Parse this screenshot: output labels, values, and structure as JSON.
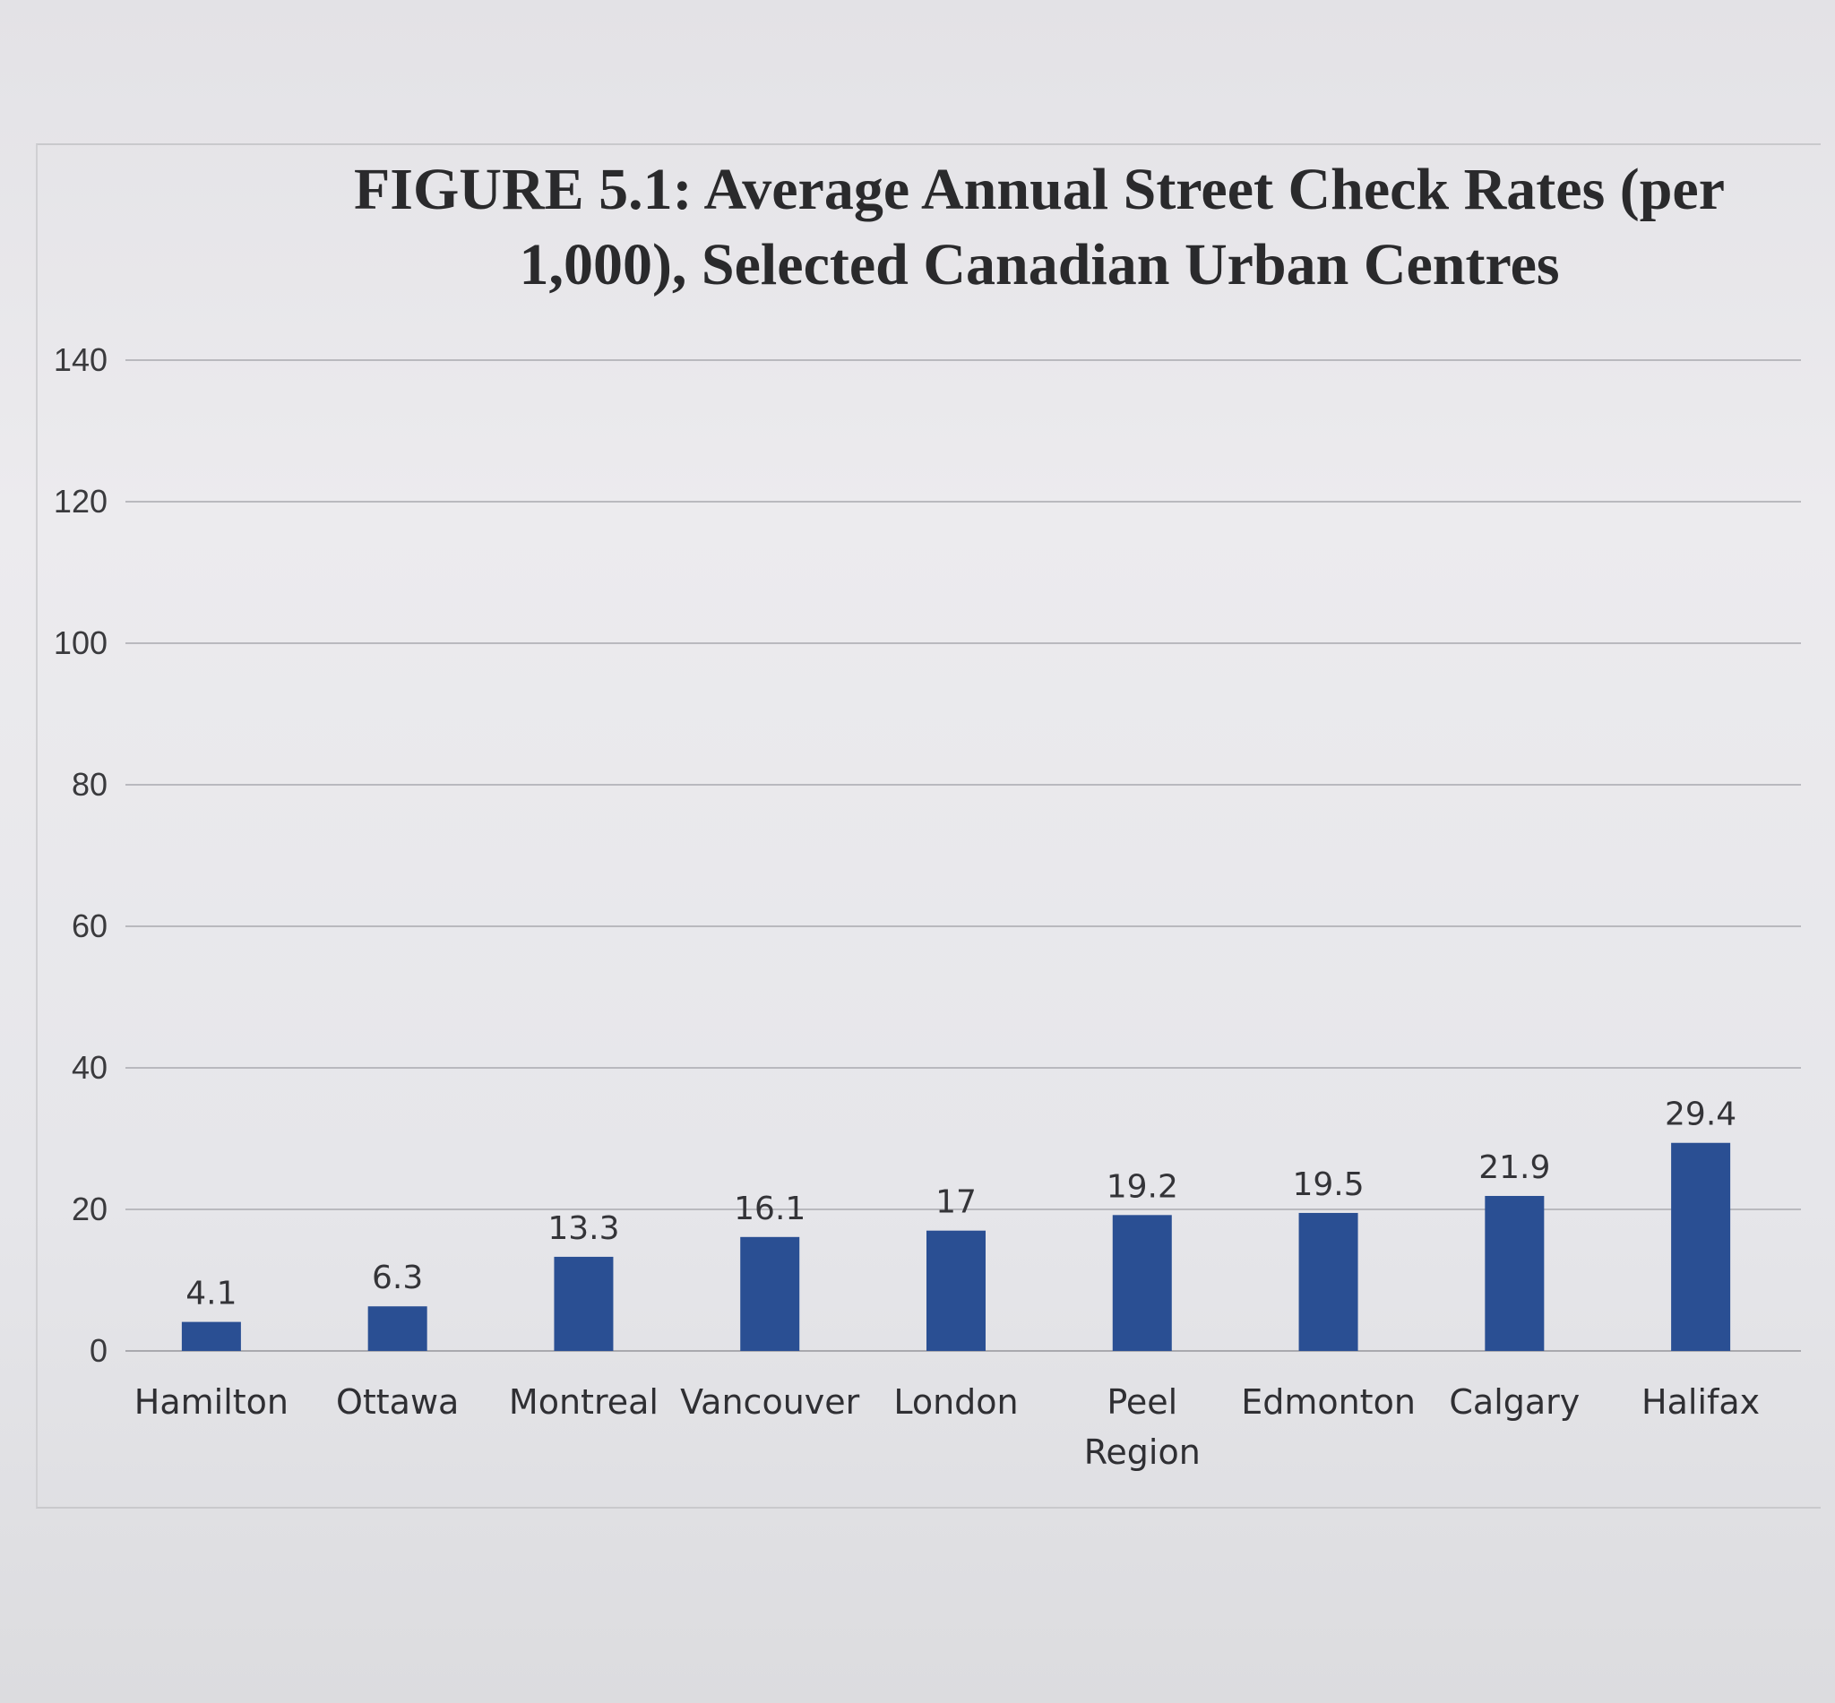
{
  "chart_data": {
    "type": "bar",
    "title": "FIGURE 5.1: Average Annual Street Check Rates (per 1,000), Selected Canadian Urban Centres",
    "categories": [
      "Hamilton",
      "Ottawa",
      "Montreal",
      "Vancouver",
      "London",
      "Peel Region",
      "Edmonton",
      "Calgary",
      "Halifax"
    ],
    "values": [
      4.1,
      6.3,
      13.3,
      16.1,
      17,
      19.2,
      19.5,
      21.9,
      29.4
    ],
    "value_labels": [
      "4.1",
      "6.3",
      "13.3",
      "16.1",
      "17",
      "19.2",
      "19.5",
      "21.9",
      "29.4"
    ],
    "ylim": [
      0,
      140
    ],
    "yticks": [
      "0",
      "20",
      "40",
      "60",
      "80",
      "100",
      "120",
      "140"
    ],
    "ytick_values": [
      0,
      20,
      40,
      60,
      80,
      100,
      120,
      140
    ],
    "xlabel": "",
    "ylabel": "",
    "grid": true,
    "legend": "none",
    "bar_color": "#2a4f93"
  }
}
